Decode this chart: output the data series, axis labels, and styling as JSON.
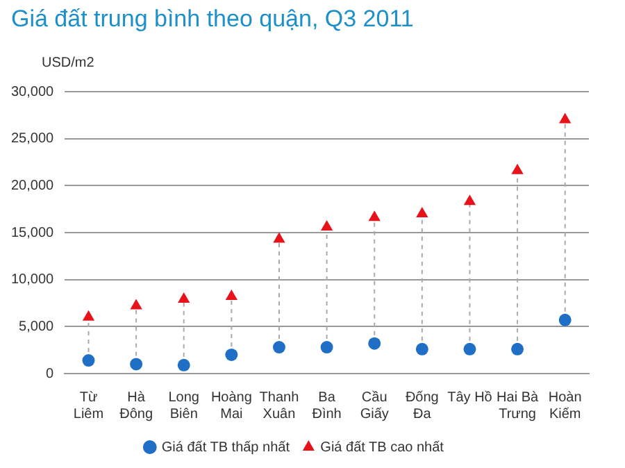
{
  "chart_data": {
    "type": "scatter",
    "title": "Giá đất trung bình theo quận, Q3 2011",
    "ylabel": "USD/m2",
    "categories": [
      [
        "Từ",
        "Liêm"
      ],
      [
        "Hà",
        "Đông"
      ],
      [
        "Long",
        "Biên"
      ],
      [
        "Hoàng",
        "Mai"
      ],
      [
        "Thanh",
        "Xuân"
      ],
      [
        "Ba",
        "Đình"
      ],
      [
        "Cầu",
        "Giấy"
      ],
      [
        "Đống",
        "Đa"
      ],
      [
        "Tây Hồ"
      ],
      [
        "Hai Bà",
        "Trưng"
      ],
      [
        "Hoàn",
        "Kiếm"
      ]
    ],
    "series": [
      {
        "name": "Giá đất TB thấp nhất",
        "color": "#1f6fc6",
        "marker": "circle",
        "values": [
          1400,
          1000,
          900,
          2000,
          2800,
          2800,
          3200,
          2600,
          2600,
          2600,
          5700
        ]
      },
      {
        "name": "Giá đất TB cao nhất",
        "color": "#e8121a",
        "marker": "triangle",
        "values": [
          6000,
          7200,
          7900,
          8200,
          14300,
          15600,
          16600,
          17000,
          18300,
          21600,
          27000
        ]
      }
    ],
    "ylim": [
      0,
      30000
    ],
    "yticks": [
      {
        "value": 0,
        "label": "0"
      },
      {
        "value": 5000,
        "label": "5,000"
      },
      {
        "value": 10000,
        "label": "10,000"
      },
      {
        "value": 15000,
        "label": "15,000"
      },
      {
        "value": 20000,
        "label": "20,000"
      },
      {
        "value": 25000,
        "label": "25,000"
      },
      {
        "value": 30000,
        "label": "30,000"
      }
    ],
    "grid": "y",
    "legend": "bottom"
  }
}
